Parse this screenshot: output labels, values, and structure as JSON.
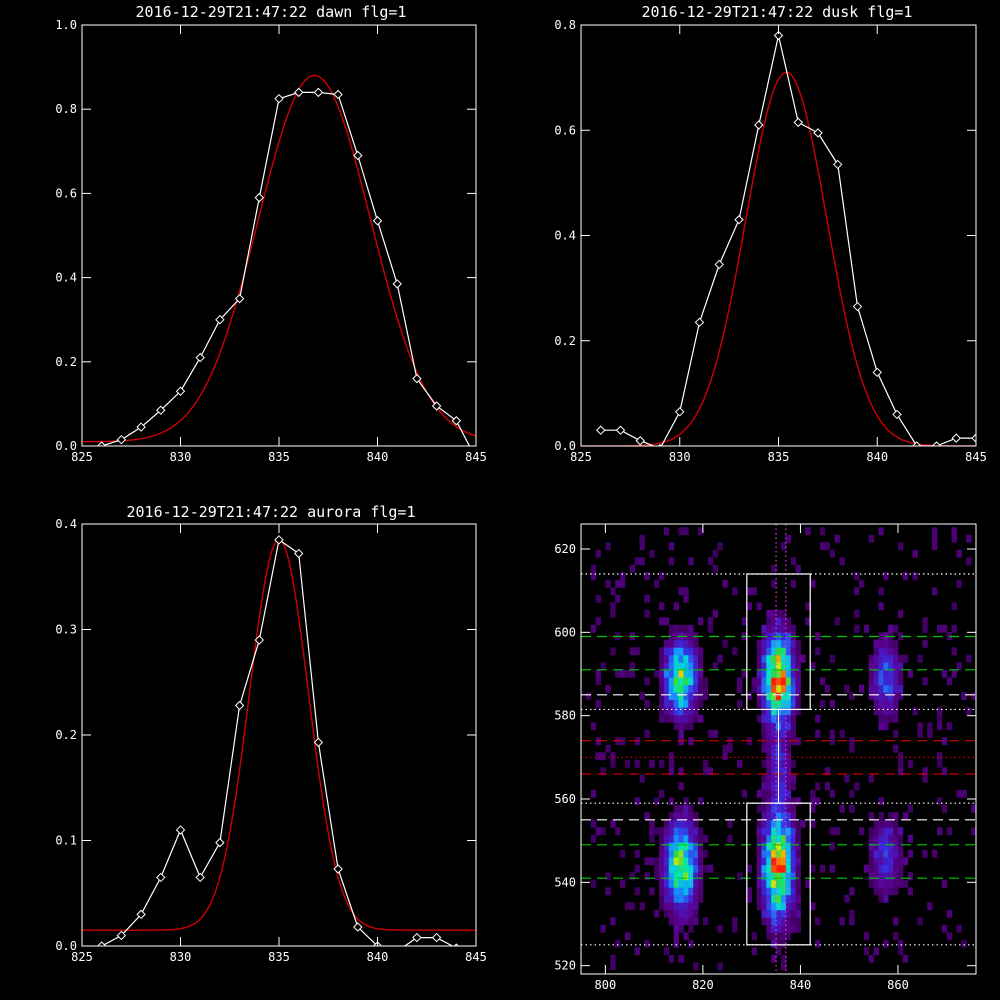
{
  "colors": {
    "background": "#000000",
    "data": "#ffffff",
    "fit": "#d00000",
    "green": "#00c800",
    "red": "#d00000",
    "white": "#ffffff"
  },
  "chart_data": [
    {
      "type": "line",
      "title": "2016-12-29T21:47:22 dawn flg=1",
      "xlim": [
        825,
        845
      ],
      "ylim": [
        0,
        1.0
      ],
      "xticks": [
        "825",
        "830",
        "835",
        "840",
        "845"
      ],
      "yticks": [
        "0.0",
        "0.2",
        "0.4",
        "0.6",
        "0.8",
        "1.0"
      ],
      "series": [
        {
          "style": "data-diamonds",
          "x": [
            826,
            827,
            828,
            829,
            830,
            831,
            832,
            833,
            834,
            835,
            836,
            837,
            838,
            839,
            840,
            841,
            842,
            843,
            844,
            845
          ],
          "y": [
            0.0,
            0.015,
            0.045,
            0.085,
            0.13,
            0.21,
            0.3,
            0.35,
            0.59,
            0.825,
            0.84,
            0.84,
            0.835,
            0.69,
            0.535,
            0.385,
            0.16,
            0.095,
            0.06,
            -0.03
          ]
        },
        {
          "style": "gaussian-fit",
          "amp": 0.87,
          "center": 836.8,
          "sigma": 2.85,
          "offset": 0.01
        }
      ]
    },
    {
      "type": "line",
      "title": "2016-12-29T21:47:22 dusk flg=1",
      "xlim": [
        825,
        845
      ],
      "ylim": [
        0,
        0.8
      ],
      "xticks": [
        "825",
        "830",
        "835",
        "840",
        "845"
      ],
      "yticks": [
        "0.0",
        "0.2",
        "0.4",
        "0.6",
        "0.8"
      ],
      "series": [
        {
          "style": "data-diamonds",
          "x": [
            826,
            827,
            828,
            829,
            830,
            831,
            832,
            833,
            834,
            835,
            836,
            837,
            838,
            839,
            840,
            841,
            842,
            843,
            844,
            845
          ],
          "y": [
            0.03,
            0.03,
            0.01,
            -0.005,
            0.065,
            0.235,
            0.345,
            0.43,
            0.61,
            0.78,
            0.615,
            0.595,
            0.535,
            0.265,
            0.14,
            0.06,
            0.0,
            0.0,
            0.015,
            0.015
          ]
        },
        {
          "style": "gaussian-fit",
          "amp": 0.71,
          "center": 835.4,
          "sigma": 2.05,
          "offset": 0.0
        }
      ]
    },
    {
      "type": "line",
      "title": "2016-12-29T21:47:22 aurora flg=1",
      "xlim": [
        825,
        845
      ],
      "ylim": [
        0,
        0.4
      ],
      "xticks": [
        "825",
        "830",
        "835",
        "840",
        "845"
      ],
      "yticks": [
        "0.0",
        "0.1",
        "0.2",
        "0.3",
        "0.4"
      ],
      "series": [
        {
          "style": "data-diamonds",
          "x": [
            826,
            827,
            828,
            829,
            830,
            831,
            832,
            833,
            834,
            835,
            836,
            837,
            838,
            839,
            840,
            841,
            842,
            843,
            844,
            845
          ],
          "y": [
            0.0,
            0.01,
            0.03,
            0.065,
            0.11,
            0.065,
            0.098,
            0.228,
            0.29,
            0.385,
            0.372,
            0.193,
            0.073,
            0.018,
            0.0,
            -0.005,
            0.008,
            0.008,
            -0.002,
            -0.02
          ]
        },
        {
          "style": "gaussian-fit",
          "amp": 0.37,
          "center": 835.0,
          "sigma": 1.5,
          "offset": 0.015
        }
      ]
    },
    {
      "type": "heatmap",
      "xlim": [
        795,
        876
      ],
      "ylim": [
        518,
        626
      ],
      "xticks": [
        "800",
        "820",
        "840",
        "860"
      ],
      "yticks": [
        "520",
        "540",
        "560",
        "580",
        "600",
        "620"
      ],
      "colormap": "purple-blue-cyan-green-yellow-red",
      "blobs": [
        {
          "x": 815,
          "y": 588,
          "sx": 2.2,
          "sy": 6,
          "amp": 0.7
        },
        {
          "x": 815,
          "y": 543,
          "sx": 2.2,
          "sy": 7,
          "amp": 0.75
        },
        {
          "x": 835,
          "y": 588,
          "sx": 2.0,
          "sy": 7,
          "amp": 1.0
        },
        {
          "x": 835,
          "y": 543,
          "sx": 2.0,
          "sy": 8,
          "amp": 1.0
        },
        {
          "x": 835,
          "y": 566,
          "sx": 1.6,
          "sy": 6,
          "amp": 0.3
        },
        {
          "x": 857,
          "y": 588,
          "sx": 2.0,
          "sy": 6,
          "amp": 0.35
        },
        {
          "x": 857,
          "y": 545,
          "sx": 2.0,
          "sy": 6,
          "amp": 0.3
        }
      ],
      "boxes": [
        {
          "x0": 829,
          "x1": 842,
          "y0": 581.5,
          "y1": 614
        },
        {
          "x0": 829,
          "x1": 842,
          "y0": 525,
          "y1": 559
        }
      ],
      "hlines": [
        {
          "y": 614,
          "color": "white",
          "style": "dotted"
        },
        {
          "y": 599,
          "color": "green",
          "style": "dashed"
        },
        {
          "y": 591,
          "color": "green",
          "style": "dashed"
        },
        {
          "y": 585,
          "color": "white",
          "style": "dashed"
        },
        {
          "y": 581.5,
          "color": "white",
          "style": "dotted"
        },
        {
          "y": 574,
          "color": "red",
          "style": "dashed"
        },
        {
          "y": 570,
          "color": "red",
          "style": "dotted"
        },
        {
          "y": 566,
          "color": "red",
          "style": "dashed"
        },
        {
          "y": 559,
          "color": "white",
          "style": "dotted"
        },
        {
          "y": 555,
          "color": "white",
          "style": "dashed"
        },
        {
          "y": 549,
          "color": "green",
          "style": "dashed"
        },
        {
          "y": 541,
          "color": "green",
          "style": "dashed"
        },
        {
          "y": 525,
          "color": "white",
          "style": "dotted"
        }
      ],
      "vlines": [
        {
          "x": 835,
          "color": "magenta",
          "style": "dotted"
        },
        {
          "x": 837,
          "color": "magenta",
          "style": "dotted"
        }
      ]
    }
  ]
}
